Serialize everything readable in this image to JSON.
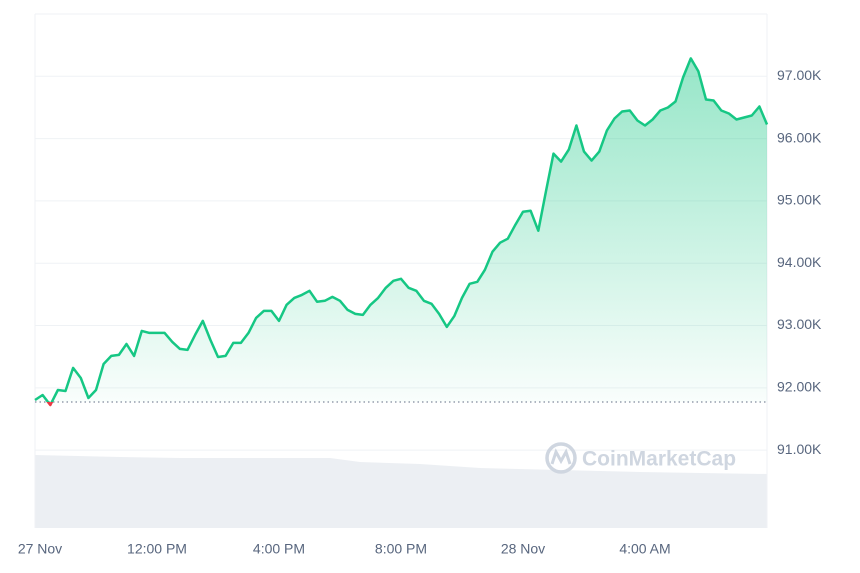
{
  "chart_data": {
    "type": "line",
    "watermark": "CoinMarketCap",
    "color": "#16c784",
    "below_color": "#ea3943",
    "reference_value": 91772,
    "xlim": [
      0,
      24
    ],
    "xticks": [
      {
        "value": 0,
        "label": "27 Nov"
      },
      {
        "value": 4,
        "label": "12:00 PM"
      },
      {
        "value": 8,
        "label": "4:00 PM"
      },
      {
        "value": 12,
        "label": "8:00 PM"
      },
      {
        "value": 16,
        "label": "28 Nov"
      },
      {
        "value": 20,
        "label": "4:00 AM"
      }
    ],
    "ylim": [
      89750,
      98000
    ],
    "yticks": [
      {
        "value": 91000,
        "label": "91.00K"
      },
      {
        "value": 92000,
        "label": "92.00K"
      },
      {
        "value": 93000,
        "label": "93.00K"
      },
      {
        "value": 94000,
        "label": "94.00K"
      },
      {
        "value": 95000,
        "label": "95.00K"
      },
      {
        "value": 96000,
        "label": "96.00K"
      },
      {
        "value": 97000,
        "label": "97.00K"
      }
    ],
    "grid": true,
    "x": [
      0,
      0.25,
      0.5,
      0.75,
      1,
      1.25,
      1.5,
      1.75,
      2,
      2.25,
      2.5,
      2.75,
      3,
      3.25,
      3.5,
      3.75,
      4,
      4.25,
      4.5,
      4.75,
      5,
      5.25,
      5.5,
      5.75,
      6,
      6.25,
      6.5,
      6.75,
      7,
      7.25,
      7.5,
      7.75,
      8,
      8.25,
      8.5,
      8.75,
      9,
      9.25,
      9.5,
      9.75,
      10,
      10.25,
      10.5,
      10.75,
      11,
      11.25,
      11.5,
      11.75,
      12,
      12.25,
      12.5,
      12.75,
      13,
      13.25,
      13.5,
      13.75,
      14,
      14.25,
      14.5,
      14.75,
      15,
      15.25,
      15.5,
      15.75,
      16,
      16.25,
      16.5,
      16.75,
      17,
      17.25,
      17.5,
      17.75,
      18,
      18.25,
      18.5,
      18.75,
      19,
      19.25,
      19.5,
      19.75,
      20,
      20.25,
      20.5,
      20.75,
      21,
      21.25,
      21.5,
      21.75,
      22,
      22.25,
      22.5,
      22.75,
      23,
      23.25,
      23.5,
      23.75,
      24
    ],
    "values": [
      91804,
      91884,
      91724,
      91965,
      91949,
      92319,
      92158,
      91836,
      91965,
      92383,
      92512,
      92528,
      92704,
      92512,
      92914,
      92881,
      92881,
      92881,
      92737,
      92624,
      92608,
      92849,
      93074,
      92769,
      92495,
      92512,
      92721,
      92721,
      92881,
      93123,
      93235,
      93235,
      93074,
      93332,
      93444,
      93492,
      93557,
      93380,
      93396,
      93460,
      93396,
      93251,
      93187,
      93171,
      93332,
      93444,
      93605,
      93718,
      93750,
      93605,
      93557,
      93396,
      93348,
      93187,
      92978,
      93155,
      93444,
      93669,
      93701,
      93894,
      94184,
      94329,
      94393,
      94618,
      94827,
      94843,
      94522,
      95149,
      95760,
      95631,
      95824,
      96210,
      95792,
      95647,
      95792,
      96130,
      96322,
      96435,
      96451,
      96290,
      96210,
      96306,
      96451,
      96499,
      96596,
      96982,
      97287,
      97078,
      96628,
      96612,
      96451,
      96403,
      96306,
      96338,
      96371,
      96515,
      96226
    ]
  }
}
